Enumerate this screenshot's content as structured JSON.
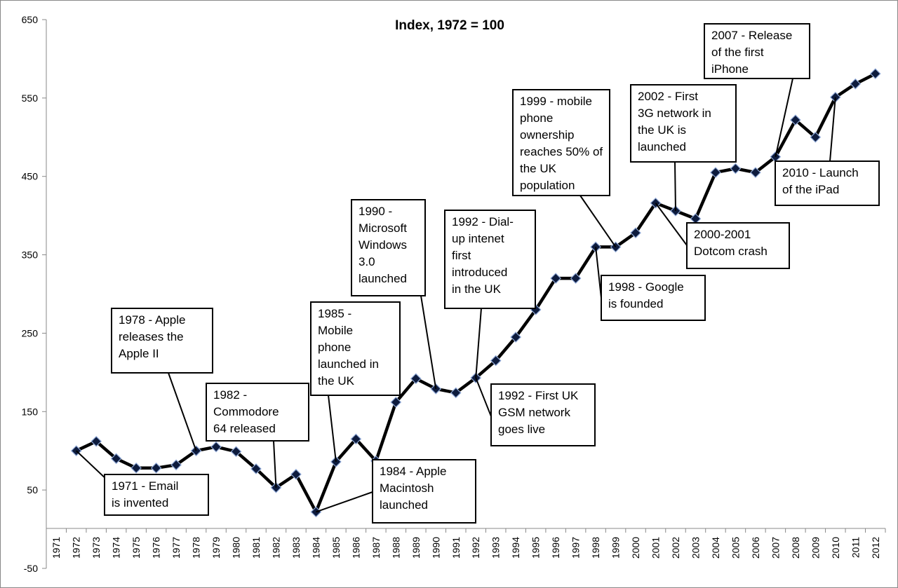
{
  "chart_data": {
    "type": "line",
    "title": "Index, 1972 = 100",
    "xlabel": "",
    "ylabel": "",
    "ylim": [
      -50,
      650
    ],
    "y_ticks": [
      "650",
      "550",
      "450",
      "350",
      "250",
      "150",
      "50",
      "-50"
    ],
    "x_tick_labels": [
      "1971",
      "1972",
      "1973",
      "1974",
      "1975",
      "1976",
      "1977",
      "1978",
      "1979",
      "1980",
      "1981",
      "1982",
      "1983",
      "1984",
      "1985",
      "1986",
      "1987",
      "1988",
      "1989",
      "1990",
      "1991",
      "1992",
      "1993",
      "1994",
      "1995",
      "1996",
      "1997",
      "1998",
      "1999",
      "2000",
      "2001",
      "2002",
      "2003",
      "2004",
      "2005",
      "2006",
      "2007",
      "2008",
      "2009",
      "2010",
      "2011",
      "2012"
    ],
    "grid": false,
    "legend": "none",
    "series": [
      {
        "x": [
          "1972",
          "1973",
          "1974",
          "1975",
          "1976",
          "1977",
          "1978",
          "1979",
          "1980",
          "1981",
          "1982",
          "1983",
          "1984",
          "1985",
          "1986",
          "1987",
          "1988",
          "1989",
          "1990",
          "1991",
          "1992",
          "1993",
          "1994",
          "1995",
          "1996",
          "1997",
          "1998",
          "1999",
          "2000",
          "2001",
          "2002",
          "2003",
          "2004",
          "2005",
          "2006",
          "2007",
          "2008",
          "2009",
          "2010",
          "2011",
          "2012"
        ],
        "values": [
          100,
          112,
          90,
          78,
          78,
          82,
          100,
          105,
          99,
          77,
          53,
          70,
          22,
          86,
          115,
          87,
          162,
          192,
          179,
          174,
          193,
          215,
          245,
          280,
          320,
          320,
          360,
          360,
          378,
          416,
          406,
          396,
          455,
          460,
          455,
          475,
          522,
          500,
          551,
          568,
          581
        ],
        "color": "#000000",
        "marker_color": "#0d1b3d"
      }
    ],
    "annotations": [
      {
        "lines": [
          "1971 -  Email",
          "is invented"
        ],
        "target_year": "1972"
      },
      {
        "lines": [
          "1978 - Apple",
          "releases the",
          "Apple II"
        ],
        "target_year": "1978"
      },
      {
        "lines": [
          "1982 -",
          "Commodore",
          "64 released"
        ],
        "target_year": "1982"
      },
      {
        "lines": [
          "1984 - Apple",
          "Macintosh",
          "launched"
        ],
        "target_year": "1984"
      },
      {
        "lines": [
          "1985 -",
          "Mobile",
          "phone",
          "launched in",
          "the UK"
        ],
        "target_year": "1985"
      },
      {
        "lines": [
          "1990 -",
          "Microsoft",
          "Windows",
          "3.0",
          "launched"
        ],
        "target_year": "1990"
      },
      {
        "lines": [
          "1992 - Dial-",
          "up intenet",
          "first",
          "introduced",
          "in the UK"
        ],
        "target_year": "1992"
      },
      {
        "lines": [
          "1992 - First UK",
          "GSM network",
          "goes live"
        ],
        "target_year": "1992"
      },
      {
        "lines": [
          "1998 - Google",
          "is founded"
        ],
        "target_year": "1998"
      },
      {
        "lines": [
          "1999 - mobile",
          "phone",
          "ownership",
          "reaches 50% of",
          "the UK",
          "population"
        ],
        "target_year": "1999"
      },
      {
        "lines": [
          "2000-2001",
          "Dotcom crash"
        ],
        "target_year": "2001"
      },
      {
        "lines": [
          "2002 - First",
          "3G network in",
          "the UK is",
          "launched"
        ],
        "target_year": "2002"
      },
      {
        "lines": [
          "2007 - Release",
          "of the first",
          "iPhone"
        ],
        "target_year": "2007"
      },
      {
        "lines": [
          "2010 - Launch",
          "of the iPad"
        ],
        "target_year": "2010"
      }
    ]
  }
}
